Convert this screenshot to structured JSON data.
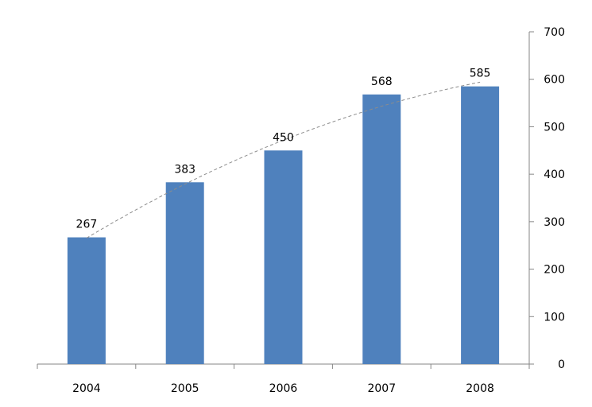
{
  "chart_data": {
    "type": "bar",
    "categories": [
      "2004",
      "2005",
      "2006",
      "2007",
      "2008"
    ],
    "values": [
      267,
      383,
      450,
      568,
      585
    ],
    "data_labels": [
      "267",
      "383",
      "450",
      "568",
      "585"
    ],
    "ylim": [
      0,
      700
    ],
    "y_ticks": [
      0,
      100,
      200,
      300,
      400,
      500,
      600,
      700
    ],
    "y_tick_labels": [
      "0",
      "100",
      "200",
      "300",
      "400",
      "500",
      "600",
      "700"
    ],
    "y_axis_position": "right",
    "trendline": "polynomial",
    "grid": false,
    "bar_color": "#4f81bd",
    "trendline_color": "#8c8c8c"
  }
}
